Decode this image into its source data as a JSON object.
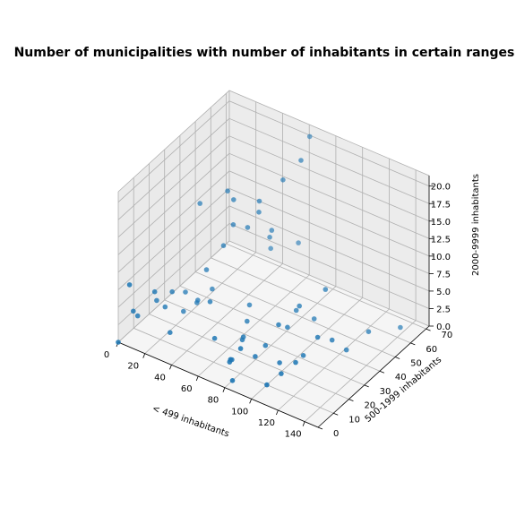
{
  "chart_data": {
    "type": "scatter",
    "projection": "3d",
    "title": "Number of municipalities with number of inhabitants in certain ranges",
    "xlabel": "< 499 inhabitants",
    "ylabel": "500-1999 inhabitants",
    "zlabel": "2000-9999 inhabitants",
    "xlim": [
      0,
      150
    ],
    "ylim": [
      0,
      72
    ],
    "zlim": [
      0,
      21.5
    ],
    "xticks": [
      "0",
      "20",
      "40",
      "60",
      "80",
      "100",
      "120",
      "140"
    ],
    "yticks": [
      "0",
      "10",
      "20",
      "30",
      "40",
      "50",
      "60",
      "70"
    ],
    "zticks": [
      "0.0",
      "2.5",
      "5.0",
      "7.5",
      "10.0",
      "12.5",
      "15.0",
      "17.5",
      "20.0"
    ],
    "grid": true,
    "color": "#1f77b4",
    "x": [
      0,
      5,
      2,
      3,
      10,
      8,
      12,
      15,
      20,
      18,
      25,
      22,
      30,
      28,
      35,
      40,
      38,
      45,
      50,
      48,
      55,
      60,
      58,
      62,
      65,
      70,
      68,
      72,
      75,
      80,
      78,
      82,
      85,
      88,
      90,
      92,
      95,
      98,
      100,
      105,
      110,
      115,
      120,
      125,
      130,
      140,
      45,
      60,
      15,
      30,
      50,
      70,
      40,
      85,
      100,
      25,
      65,
      110,
      55
    ],
    "y": [
      0,
      3,
      8,
      10,
      15,
      18,
      20,
      22,
      25,
      28,
      30,
      32,
      35,
      33,
      38,
      40,
      42,
      45,
      48,
      50,
      52,
      55,
      35,
      30,
      25,
      20,
      15,
      10,
      8,
      5,
      12,
      18,
      22,
      28,
      32,
      38,
      45,
      20,
      10,
      15,
      25,
      30,
      35,
      40,
      50,
      62,
      60,
      65,
      40,
      45,
      55,
      58,
      25,
      42,
      48,
      12,
      68,
      20,
      15
    ],
    "z": [
      0,
      8,
      3,
      2,
      5,
      3,
      2,
      4,
      1,
      3,
      2,
      1,
      3,
      6,
      9,
      12,
      15,
      11,
      13,
      14,
      10,
      17,
      3,
      2,
      1,
      2,
      0,
      1,
      2,
      0,
      3,
      1,
      2,
      4,
      3,
      5,
      2,
      1,
      0,
      1,
      2,
      4,
      3,
      1,
      2,
      1,
      5,
      6,
      13,
      15,
      8,
      20,
      4,
      3,
      6,
      1,
      21,
      2,
      2
    ]
  }
}
